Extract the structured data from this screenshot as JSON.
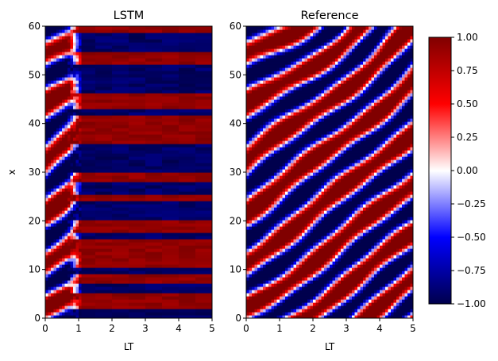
{
  "chart_data": [
    {
      "type": "heatmap",
      "title": "LSTM",
      "xlabel": "LT",
      "ylabel": "x",
      "xlim": [
        0,
        5
      ],
      "ylim": [
        0,
        60
      ],
      "x_ticks": [
        "0",
        "1",
        "2",
        "3",
        "4",
        "5"
      ],
      "y_ticks": [
        "0",
        "10",
        "20",
        "30",
        "40",
        "50",
        "60"
      ],
      "colormap": "seismic",
      "value_range": [
        -1,
        1
      ],
      "description_of_field": "irregular spatio-temporal pattern for LT < 1, then horizontal saturated bands of +1 (dark red) and -1 (dark blue) for LT > 1",
      "late_time_bands": [
        {
          "x_from": 0,
          "x_to": 2,
          "value": -1
        },
        {
          "x_from": 2,
          "x_to": 5,
          "value": 1
        },
        {
          "x_from": 5,
          "x_to": 7,
          "value": -1
        },
        {
          "x_from": 7,
          "x_to": 9,
          "value": 1
        },
        {
          "x_from": 9,
          "x_to": 10.5,
          "value": -1
        },
        {
          "x_from": 10.5,
          "x_to": 16,
          "value": 1
        },
        {
          "x_from": 16,
          "x_to": 17.5,
          "value": -1
        },
        {
          "x_from": 17.5,
          "x_to": 20,
          "value": 1
        },
        {
          "x_from": 20,
          "x_to": 24,
          "value": -1
        },
        {
          "x_from": 24,
          "x_to": 25.5,
          "value": 1
        },
        {
          "x_from": 25.5,
          "x_to": 28,
          "value": -1
        },
        {
          "x_from": 28,
          "x_to": 30,
          "value": 1
        },
        {
          "x_from": 30,
          "x_to": 36,
          "value": -1
        },
        {
          "x_from": 36,
          "x_to": 41.5,
          "value": 1
        },
        {
          "x_from": 41.5,
          "x_to": 43,
          "value": -1
        },
        {
          "x_from": 43,
          "x_to": 46,
          "value": 1
        },
        {
          "x_from": 46,
          "x_to": 52,
          "value": -1
        },
        {
          "x_from": 52,
          "x_to": 55,
          "value": 1
        },
        {
          "x_from": 55,
          "x_to": 59,
          "value": -1
        },
        {
          "x_from": 59,
          "x_to": 60,
          "value": 1
        }
      ]
    },
    {
      "type": "heatmap",
      "title": "Reference",
      "xlabel": "LT",
      "ylabel": "",
      "xlim": [
        0,
        5
      ],
      "ylim": [
        0,
        60
      ],
      "x_ticks": [
        "0",
        "1",
        "2",
        "3",
        "4",
        "5"
      ],
      "y_ticks": [
        "0",
        "10",
        "20",
        "30",
        "40",
        "50",
        "60"
      ],
      "colormap": "seismic",
      "value_range": [
        -1,
        1
      ],
      "description_of_field": "diagonal travelling stripes alternating between positive (red) and negative (blue), drifting upward with time"
    }
  ],
  "colorbar": {
    "min": -1.0,
    "max": 1.0,
    "colors": {
      "low": "#00004c",
      "mid_low": "#0000ff",
      "center": "#ffffff",
      "mid_high": "#ff0000",
      "high": "#800000"
    },
    "ticks": [
      {
        "value": 1.0,
        "label": "1.00"
      },
      {
        "value": 0.75,
        "label": "0.75"
      },
      {
        "value": 0.5,
        "label": "0.50"
      },
      {
        "value": 0.25,
        "label": "0.25"
      },
      {
        "value": 0.0,
        "label": "0.00"
      },
      {
        "value": -0.25,
        "label": "−0.25"
      },
      {
        "value": -0.5,
        "label": "−0.50"
      },
      {
        "value": -0.75,
        "label": "−0.75"
      },
      {
        "value": -1.0,
        "label": "−1.00"
      }
    ]
  }
}
